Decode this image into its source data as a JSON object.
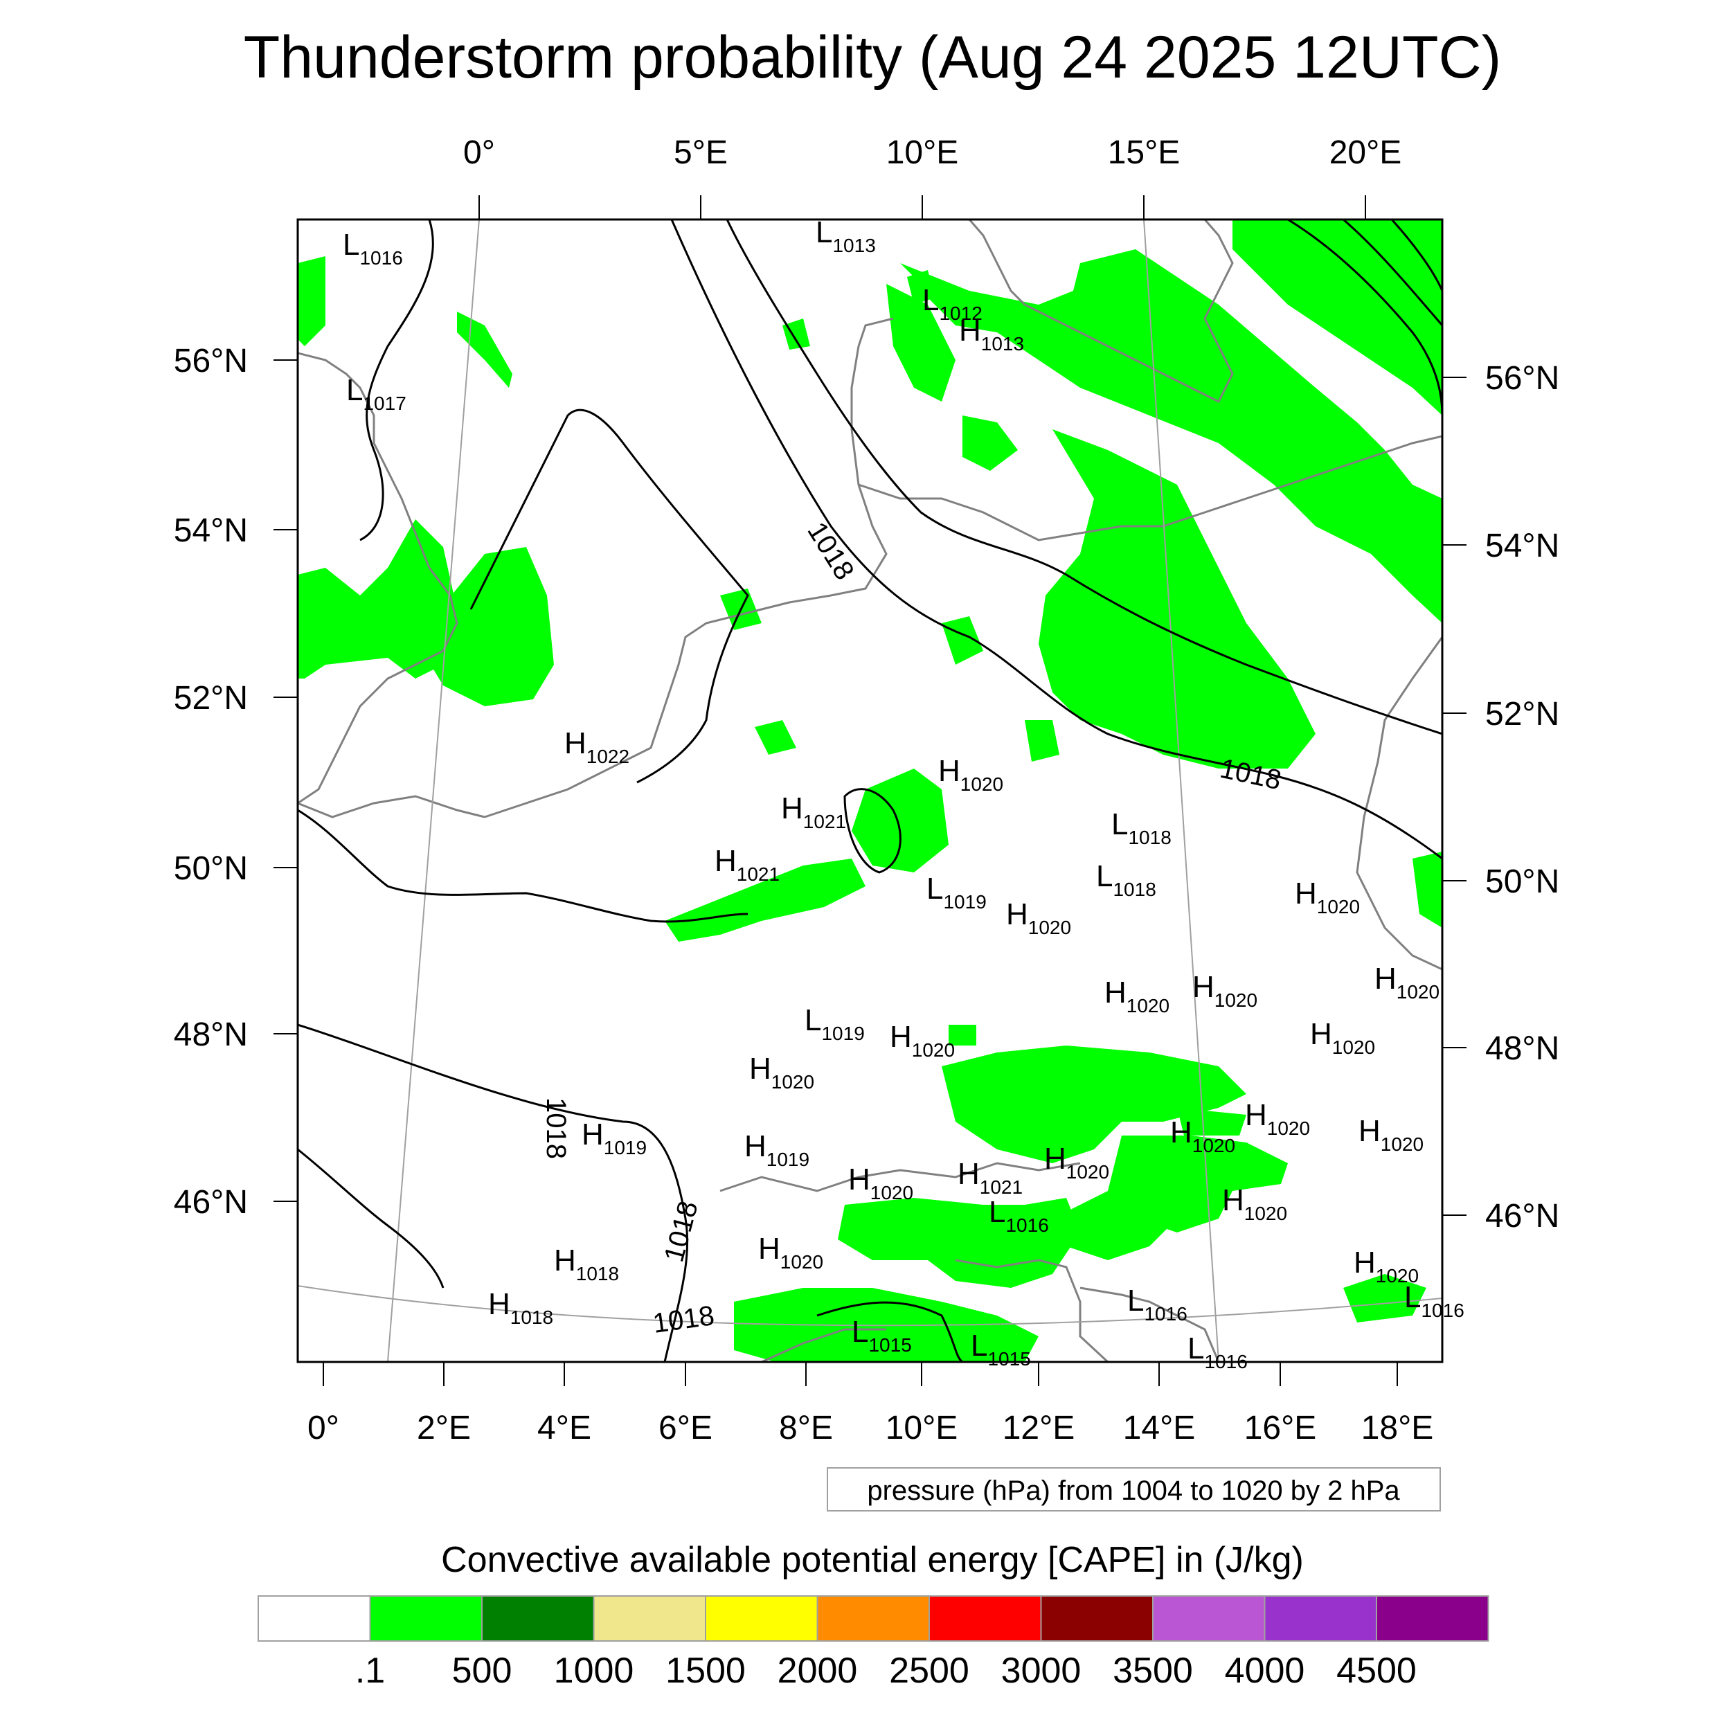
{
  "title": "Thunderstorm probability (Aug 24 2025 12UTC)",
  "top_lon_labels": [
    "0°",
    "5°E",
    "10°E",
    "15°E",
    "20°E"
  ],
  "bottom_lon_labels": [
    "0°",
    "2°E",
    "4°E",
    "6°E",
    "8°E",
    "10°E",
    "12°E",
    "14°E",
    "16°E",
    "18°E"
  ],
  "left_lat_labels": [
    "56°N",
    "54°N",
    "52°N",
    "50°N",
    "48°N",
    "46°N"
  ],
  "right_lat_labels": [
    "56°N",
    "54°N",
    "52°N",
    "50°N",
    "48°N",
    "46°N"
  ],
  "contour_note": "pressure (hPa) from 1004 to 1020 by 2 hPa",
  "colorbar": {
    "title": "Convective available potential energy [CAPE] in (J/kg)",
    "colors": [
      "#ffffff",
      "#00ff00",
      "#008000",
      "#f0e68c",
      "#ffff00",
      "#ff8c00",
      "#ff0000",
      "#8b0000",
      "#ba55d3",
      "#9932cc",
      "#8b008b"
    ],
    "labels": [
      ".1",
      "500",
      "1000",
      "1500",
      "2000",
      "2500",
      "3000",
      "3500",
      "4000",
      "4500"
    ]
  },
  "isobar_labels": [
    "1018",
    "1018",
    "1018",
    "1018",
    "1018"
  ],
  "pressure_centers": [
    {
      "t": "L",
      "v": "1016"
    },
    {
      "t": "L",
      "v": "1017"
    },
    {
      "t": "L",
      "v": "1013"
    },
    {
      "t": "L",
      "v": "1012"
    },
    {
      "t": "H",
      "v": "1013"
    },
    {
      "t": "H",
      "v": "1022"
    },
    {
      "t": "H",
      "v": "1020"
    },
    {
      "t": "H",
      "v": "1021"
    },
    {
      "t": "H",
      "v": "1021"
    },
    {
      "t": "L",
      "v": "1019"
    },
    {
      "t": "H",
      "v": "1020"
    },
    {
      "t": "L",
      "v": "1018"
    },
    {
      "t": "L",
      "v": "1018"
    },
    {
      "t": "H",
      "v": "1020"
    },
    {
      "t": "H",
      "v": "1020"
    },
    {
      "t": "H",
      "v": "1020"
    },
    {
      "t": "H",
      "v": "1020"
    },
    {
      "t": "L",
      "v": "1019"
    },
    {
      "t": "H",
      "v": "1020"
    },
    {
      "t": "H",
      "v": "1020"
    },
    {
      "t": "H",
      "v": "1020"
    },
    {
      "t": "H",
      "v": "1020"
    },
    {
      "t": "H",
      "v": "1019"
    },
    {
      "t": "H",
      "v": "1019"
    },
    {
      "t": "H",
      "v": "1020"
    },
    {
      "t": "H",
      "v": "1021"
    },
    {
      "t": "H",
      "v": "1020"
    },
    {
      "t": "H",
      "v": "1020"
    },
    {
      "t": "H",
      "v": "1020"
    },
    {
      "t": "H",
      "v": "1020"
    },
    {
      "t": "L",
      "v": "1016"
    },
    {
      "t": "H",
      "v": "1020"
    },
    {
      "t": "H",
      "v": "1018"
    },
    {
      "t": "H",
      "v": "1018"
    },
    {
      "t": "L",
      "v": "1016"
    },
    {
      "t": "L",
      "v": "1015"
    },
    {
      "t": "L",
      "v": "1015"
    },
    {
      "t": "L",
      "v": "1016"
    },
    {
      "t": "L",
      "v": "1016"
    },
    {
      "t": "H",
      "v": "1020"
    }
  ]
}
